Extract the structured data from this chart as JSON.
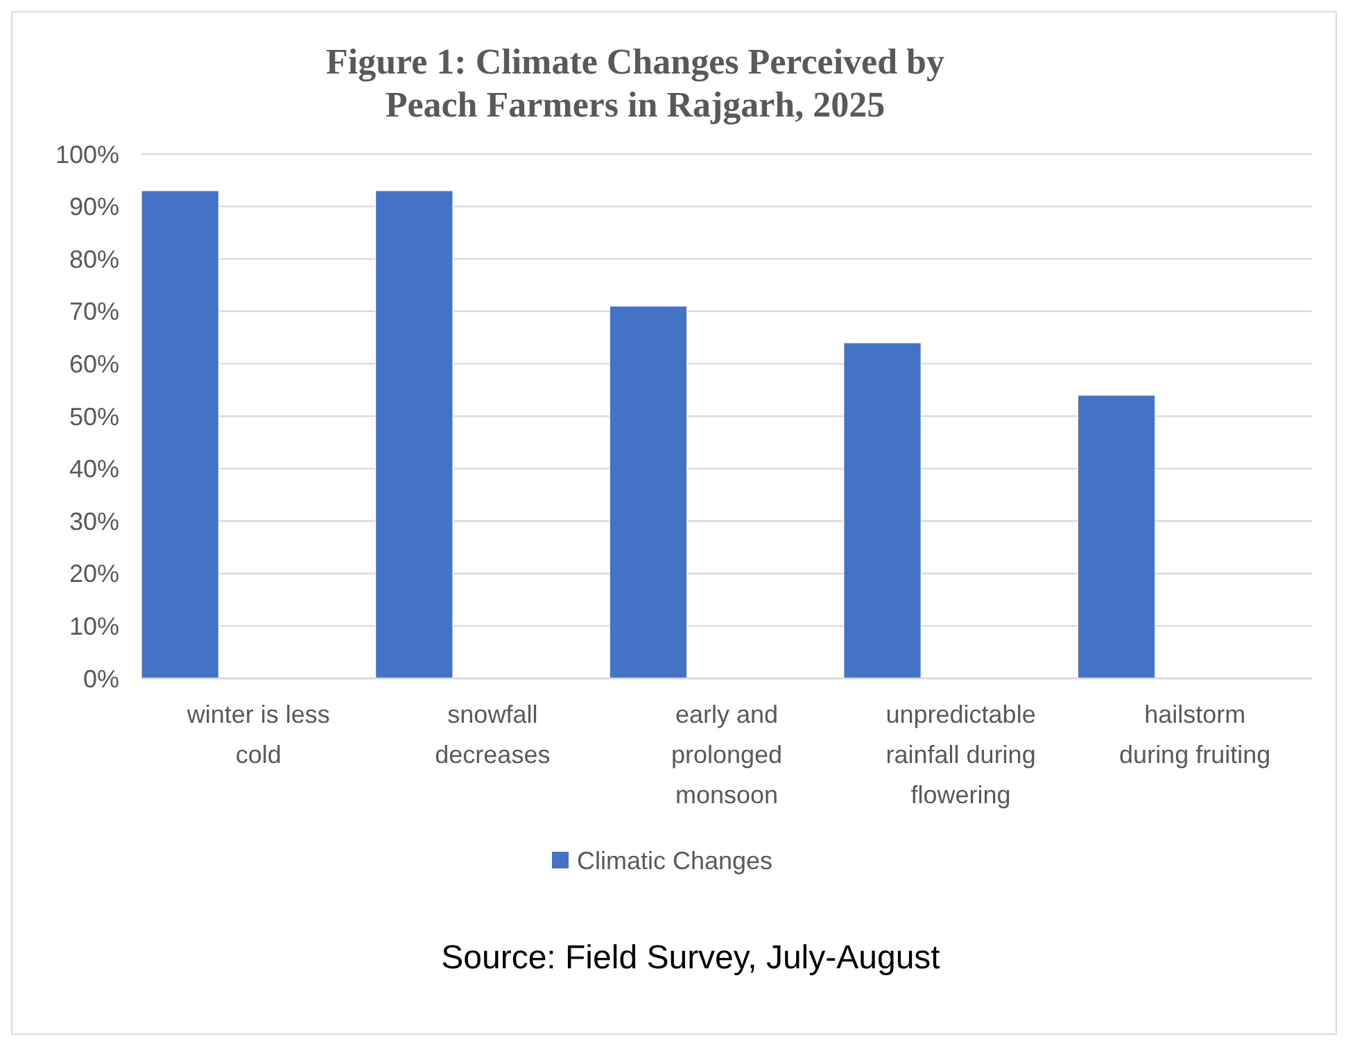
{
  "chart_data": {
    "type": "bar",
    "title": "Figure 1: Climate Changes Perceived by Peach Farmers in Rajgarh, 2025",
    "categories": [
      "winter is less cold",
      "snowfall decreases",
      "early and prolonged monsoon",
      "unpredictable rainfall during flowering",
      "hailstorm during fruiting"
    ],
    "series": [
      {
        "name": "Climatic Changes",
        "color": "#4472c4",
        "values": [
          93,
          93,
          71,
          64,
          54
        ]
      }
    ],
    "ylim": [
      0,
      100
    ],
    "yticks": [
      {
        "value": 0,
        "label": "0%"
      },
      {
        "value": 10,
        "label": "10%"
      },
      {
        "value": 20,
        "label": "20%"
      },
      {
        "value": 30,
        "label": "30%"
      },
      {
        "value": 40,
        "label": "40%"
      },
      {
        "value": 50,
        "label": "50%"
      },
      {
        "value": 60,
        "label": "60%"
      },
      {
        "value": 70,
        "label": "70%"
      },
      {
        "value": 80,
        "label": "80%"
      },
      {
        "value": 90,
        "label": "90%"
      },
      {
        "value": 100,
        "label": "100%"
      }
    ],
    "grid": "y",
    "legend": "bottom",
    "annotations": [
      "Source: Field Survey, July-August"
    ]
  }
}
